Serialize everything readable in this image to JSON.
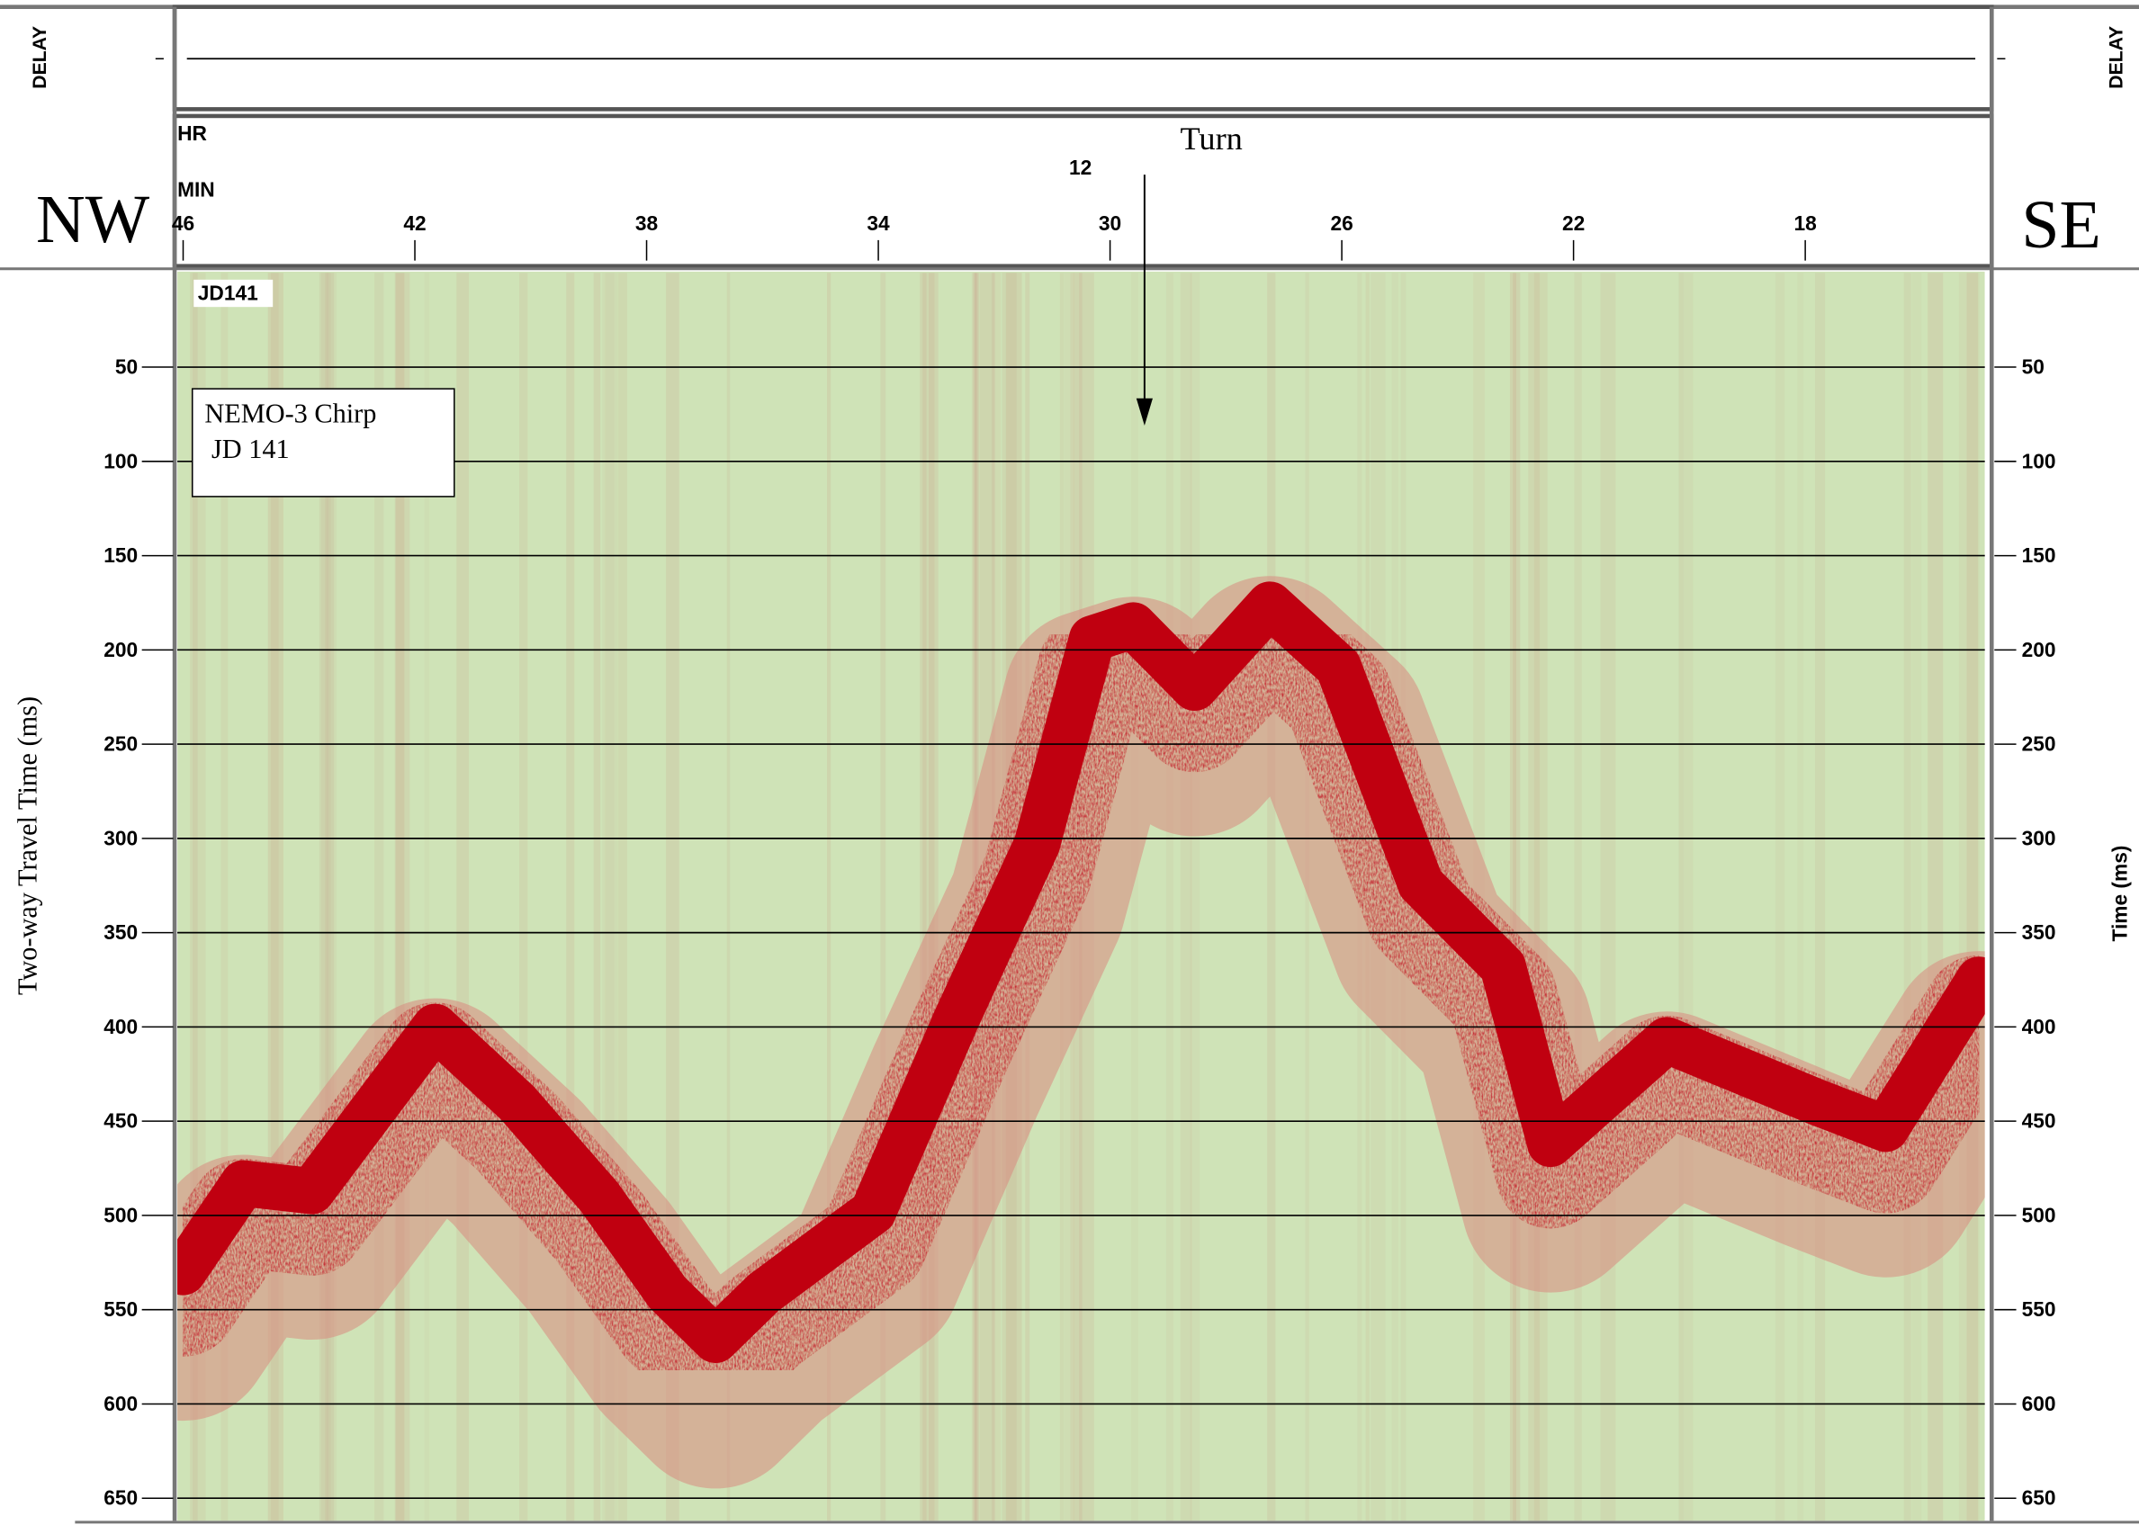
{
  "chart_data": {
    "type": "seismic",
    "title": "NEMO-3 Chirp",
    "subtitle": "JD 141",
    "label": "JD141",
    "annotation": "Turn",
    "hour_label": "12",
    "x_hour_label": "HR",
    "x_label": "MIN",
    "left_label": "NW",
    "right_label": "SE",
    "delay_label": "DELAY",
    "ylabel": "Two-way Travel Time (ms)",
    "y2label": "Time (ms)",
    "x": [
      46.0,
      44.96,
      43.78,
      41.65,
      40.24,
      38.82,
      37.64,
      36.81,
      35.98,
      34.09,
      32.67,
      31.26,
      30.31,
      29.6,
      28.54,
      27.24,
      26.06,
      24.64,
      23.22,
      22.4,
      20.39,
      17.79,
      16.61,
      15.0
    ],
    "values": [
      517,
      470,
      474,
      387,
      427,
      477,
      528,
      553,
      528,
      485,
      384,
      290,
      181,
      174,
      207,
      163,
      196,
      311,
      355,
      449,
      394,
      427,
      441,
      362
    ],
    "color": "#c00010",
    "background": "#cfe3b7",
    "xlim": [
      46.1,
      14.9
    ],
    "xticks": [
      46,
      42,
      38,
      34,
      30,
      26,
      22,
      18
    ],
    "ylim": [
      0,
      662
    ],
    "yticks": [
      50,
      100,
      150,
      200,
      250,
      300,
      350,
      400,
      450,
      500,
      550,
      600,
      650
    ],
    "grid": true
  }
}
